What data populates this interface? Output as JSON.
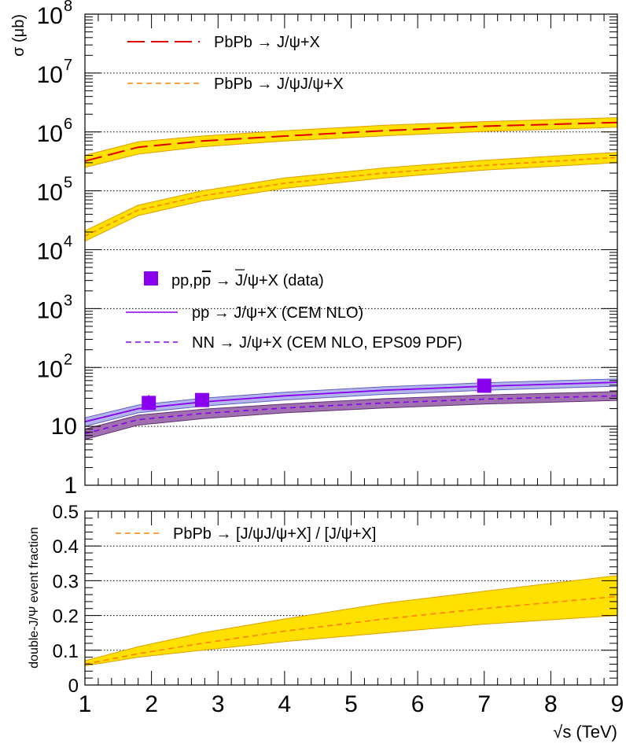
{
  "colors": {
    "band_yellow": "#ffe000",
    "band_yellow_edge": "#e0a000",
    "band_blue": "#b4b4ec",
    "band_blue_edge": "#6060c0",
    "band_purple": "#a070b0",
    "band_purple_edge": "#603070",
    "red": "#e00000",
    "orange": "#ff8000",
    "violet": "#8800ee"
  },
  "chart_data": [
    {
      "type": "line",
      "xlim": [
        1,
        9
      ],
      "ylim": [
        1,
        100000000
      ],
      "yscale": "log",
      "grid": "horizontal dotted",
      "ylabel": "σ (μb)",
      "y_ticks": [
        {
          "value": 1,
          "label": "1"
        },
        {
          "value": 10,
          "label": "10"
        },
        {
          "value": 100,
          "base": "10",
          "exp": "2"
        },
        {
          "value": 1000,
          "base": "10",
          "exp": "3"
        },
        {
          "value": 10000,
          "base": "10",
          "exp": "4"
        },
        {
          "value": 100000,
          "base": "10",
          "exp": "5"
        },
        {
          "value": 1000000,
          "base": "10",
          "exp": "6"
        },
        {
          "value": 10000000,
          "base": "10",
          "exp": "7"
        },
        {
          "value": 100000000,
          "base": "10",
          "exp": "8"
        }
      ],
      "legend_top": [
        {
          "label": "PbPb → J/ψ+X",
          "style": "long-dash",
          "color": "#e00000"
        },
        {
          "label": "PbPb → J/ψJ/ψ+X",
          "style": "short-dash",
          "color": "#ff8000"
        }
      ],
      "legend_mid_data": {
        "prefix": "pp,p",
        "pbar": "p",
        "suffix": " → J/ψ+X (data)",
        "color": "#8800ee"
      },
      "legend_mid": [
        {
          "label": "pp → J/ψ+X (CEM NLO)",
          "style": "solid",
          "color": "#8800ee"
        },
        {
          "label": "NN → J/ψ+X (CEM NLO, EPS09 PDF)",
          "style": "short-dash",
          "color": "#8800ee"
        }
      ],
      "series": [
        {
          "label_ref": "PbPb → J/ψ+X",
          "x": [
            1.0,
            1.8,
            2.76,
            4.0,
            5.5,
            7.0,
            9.0
          ],
          "y": [
            320000,
            550000,
            700000,
            850000,
            1050000,
            1250000,
            1450000
          ],
          "band_low": [
            250000,
            420000,
            560000,
            700000,
            860000,
            1020000,
            1200000
          ],
          "band_high": [
            400000,
            680000,
            850000,
            1050000,
            1300000,
            1500000,
            1750000
          ]
        },
        {
          "label_ref": "PbPb → J/ψJ/ψ+X",
          "x": [
            1.0,
            1.8,
            2.76,
            4.0,
            5.5,
            7.0,
            9.0
          ],
          "y": [
            17000,
            47000,
            82000,
            135000,
            200000,
            270000,
            370000
          ],
          "band_low": [
            14000,
            38000,
            67000,
            110000,
            165000,
            225000,
            300000
          ],
          "band_high": [
            21000,
            57000,
            100000,
            165000,
            245000,
            330000,
            450000
          ]
        },
        {
          "label_ref": "pp → J/ψ+X (CEM NLO)",
          "x": [
            1.0,
            1.8,
            2.76,
            4.0,
            5.5,
            7.0,
            9.0
          ],
          "y": [
            12,
            20,
            26,
            33,
            41,
            48,
            56
          ],
          "band_low": [
            10,
            17,
            22,
            28,
            35,
            41,
            48
          ],
          "band_high": [
            14,
            23,
            30,
            38,
            47,
            55,
            64
          ]
        },
        {
          "label_ref": "NN → J/ψ+X (CEM NLO, EPS09 PDF)",
          "x": [
            1.0,
            1.8,
            2.76,
            4.0,
            5.5,
            7.0,
            9.0
          ],
          "y": [
            7.5,
            13,
            16.5,
            20.5,
            25,
            29,
            33
          ],
          "band_low": [
            6,
            10.5,
            13.5,
            17,
            20.5,
            24,
            27.5
          ],
          "band_high": [
            9,
            15.5,
            19.5,
            24,
            29.5,
            34,
            39
          ]
        }
      ],
      "data_points": [
        {
          "x": 1.96,
          "y": 25,
          "err_low": 20,
          "err_high": 34
        },
        {
          "x": 2.76,
          "y": 28,
          "err_low": 25,
          "err_high": 32
        },
        {
          "x": 7.0,
          "y": 49,
          "err_low": 46,
          "err_high": 52
        }
      ]
    },
    {
      "type": "line",
      "xlim": [
        1,
        9
      ],
      "ylim": [
        0,
        0.5
      ],
      "grid": "horizontal dotted",
      "xlabel": "√s (TeV)",
      "ylabel": "double-J/Ψ event fraction",
      "x_ticks": [
        "1",
        "2",
        "3",
        "4",
        "5",
        "6",
        "7",
        "8",
        "9"
      ],
      "y_ticks": [
        "0",
        "0.1",
        "0.2",
        "0.3",
        "0.4",
        "0.5"
      ],
      "legend": [
        {
          "label": "PbPb → [J/ψJ/ψ+X] / [J/ψ+X]",
          "style": "short-dash",
          "color": "#ff8000"
        }
      ],
      "series": [
        {
          "label_ref": "PbPb → [J/ψJ/ψ+X] / [J/ψ+X]",
          "x": [
            1.0,
            1.8,
            2.76,
            4.0,
            5.5,
            7.0,
            9.0
          ],
          "y": [
            0.06,
            0.09,
            0.12,
            0.155,
            0.19,
            0.22,
            0.255
          ],
          "band_low": [
            0.055,
            0.08,
            0.1,
            0.125,
            0.15,
            0.175,
            0.2
          ],
          "band_high": [
            0.07,
            0.11,
            0.15,
            0.19,
            0.235,
            0.27,
            0.315
          ]
        }
      ]
    }
  ]
}
